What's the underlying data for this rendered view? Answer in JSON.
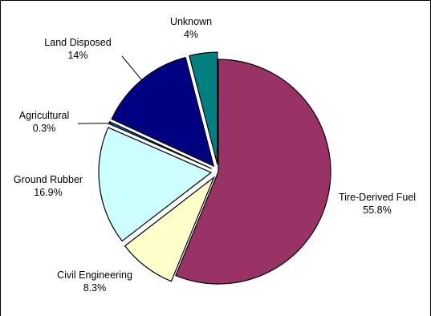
{
  "chart_data": {
    "type": "pie",
    "title": "",
    "slices": [
      {
        "label": "Tire-Derived Fuel",
        "value": 55.8,
        "value_label": "55.8%",
        "color": "#993366",
        "exploded": false
      },
      {
        "label": "Civil Engineering",
        "value": 8.3,
        "value_label": "8.3%",
        "color": "#FFFFCC",
        "exploded": true
      },
      {
        "label": "Ground Rubber",
        "value": 16.9,
        "value_label": "16.9%",
        "color": "#CCFFFF",
        "exploded": true
      },
      {
        "label": "Agricultural",
        "value": 0.3,
        "value_label": "0.3%",
        "color": "#0066CC",
        "exploded": true
      },
      {
        "label": "Land Disposed",
        "value": 14,
        "value_label": "14%",
        "color": "#000080",
        "exploded": true
      },
      {
        "label": "Unknown",
        "value": 4,
        "value_label": "4%",
        "color": "#008080",
        "exploded": true
      }
    ],
    "legend": "none",
    "labels": "outside with leader lines"
  }
}
